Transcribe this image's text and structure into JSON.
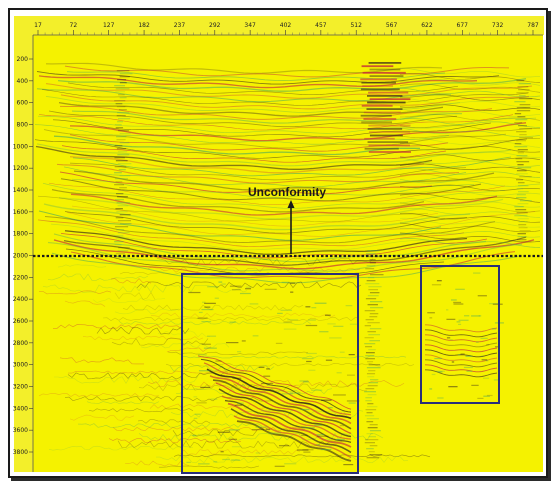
{
  "x_ticks": [
    "17",
    "72",
    "127",
    "182",
    "237",
    "292",
    "347",
    "402",
    "457",
    "512",
    "567",
    "622",
    "677",
    "732",
    "787"
  ],
  "y_ticks": [
    "200",
    "400",
    "600",
    "800",
    "1000",
    "1200",
    "1400",
    "1600",
    "1800",
    "2000",
    "2200",
    "2400",
    "2600",
    "2800",
    "3000",
    "3200",
    "3400",
    "3600",
    "3800"
  ],
  "annotation": {
    "label": "Unconformity"
  },
  "colors": {
    "background": "#f5f200",
    "frame": "#1a1a1a",
    "box": "#2a2f7a",
    "trace_dark": "#2a1a1a",
    "trace_red": "#c4283a",
    "trace_green": "#4caa5a"
  }
}
